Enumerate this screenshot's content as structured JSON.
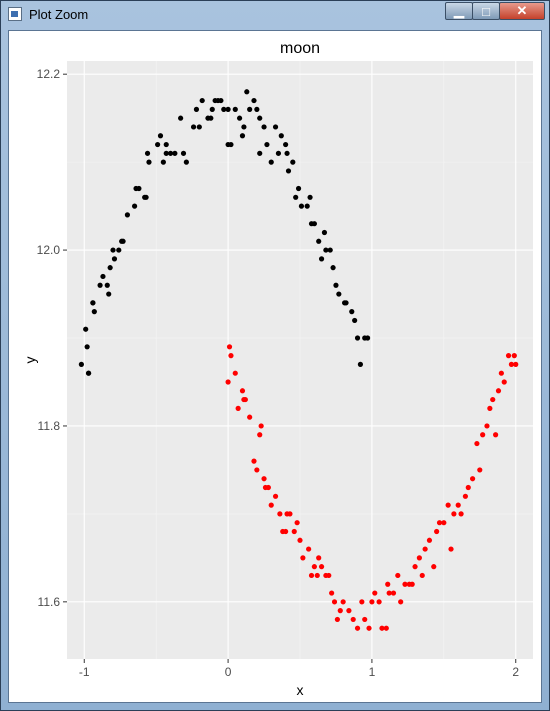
{
  "window": {
    "title": "Plot Zoom",
    "minimize_symbol": "▁",
    "maximize_symbol": "□",
    "close_symbol": "✕"
  },
  "icons": {
    "app": "plot-window-icon"
  },
  "chart_data": {
    "type": "scatter",
    "title": "moon",
    "xlabel": "x",
    "ylabel": "y",
    "xlim": [
      -1.12,
      2.12
    ],
    "ylim": [
      11.535,
      12.215
    ],
    "xticks": [
      -1,
      0,
      1,
      2
    ],
    "xtick_labels": [
      "-1",
      "0",
      "1",
      "2"
    ],
    "yticks": [
      11.6,
      11.8,
      12.0,
      12.2
    ],
    "ytick_labels": [
      "11.6",
      "11.8",
      "12.0",
      "12.2"
    ],
    "grid": true,
    "legend": "none",
    "series": [
      {
        "color": "#000000",
        "points": [
          [
            -1.02,
            11.87
          ],
          [
            -0.99,
            11.91
          ],
          [
            -0.98,
            11.89
          ],
          [
            -0.97,
            11.86
          ],
          [
            -0.97,
            11.86
          ],
          [
            -0.94,
            11.94
          ],
          [
            -0.94,
            11.94
          ],
          [
            -0.93,
            11.93
          ],
          [
            -0.89,
            11.96
          ],
          [
            -0.87,
            11.97
          ],
          [
            -0.84,
            11.96
          ],
          [
            -0.83,
            11.95
          ],
          [
            -0.82,
            11.98
          ],
          [
            -0.8,
            12.0
          ],
          [
            -0.79,
            11.99
          ],
          [
            -0.76,
            12.0
          ],
          [
            -0.74,
            12.01
          ],
          [
            -0.73,
            12.01
          ],
          [
            -0.7,
            12.04
          ],
          [
            -0.65,
            12.05
          ],
          [
            -0.64,
            12.07
          ],
          [
            -0.62,
            12.07
          ],
          [
            -0.58,
            12.06
          ],
          [
            -0.57,
            12.06
          ],
          [
            -0.56,
            12.11
          ],
          [
            -0.55,
            12.1
          ],
          [
            -0.49,
            12.12
          ],
          [
            -0.47,
            12.13
          ],
          [
            -0.45,
            12.1
          ],
          [
            -0.43,
            12.11
          ],
          [
            -0.43,
            12.12
          ],
          [
            -0.4,
            12.11
          ],
          [
            -0.37,
            12.11
          ],
          [
            -0.33,
            12.15
          ],
          [
            -0.31,
            12.11
          ],
          [
            -0.29,
            12.1
          ],
          [
            -0.24,
            12.14
          ],
          [
            -0.22,
            12.16
          ],
          [
            -0.2,
            12.14
          ],
          [
            -0.18,
            12.17
          ],
          [
            -0.14,
            12.15
          ],
          [
            -0.12,
            12.15
          ],
          [
            -0.11,
            12.16
          ],
          [
            -0.09,
            12.17
          ],
          [
            -0.07,
            12.17
          ],
          [
            -0.05,
            12.17
          ],
          [
            -0.03,
            12.16
          ],
          [
            0.0,
            12.16
          ],
          [
            0.0,
            12.12
          ],
          [
            0.02,
            12.12
          ],
          [
            0.05,
            12.16
          ],
          [
            0.08,
            12.15
          ],
          [
            0.1,
            12.13
          ],
          [
            0.11,
            12.14
          ],
          [
            0.13,
            12.18
          ],
          [
            0.15,
            12.16
          ],
          [
            0.18,
            12.17
          ],
          [
            0.2,
            12.16
          ],
          [
            0.22,
            12.15
          ],
          [
            0.22,
            12.11
          ],
          [
            0.25,
            12.14
          ],
          [
            0.27,
            12.12
          ],
          [
            0.3,
            12.1
          ],
          [
            0.33,
            12.14
          ],
          [
            0.35,
            12.11
          ],
          [
            0.37,
            12.13
          ],
          [
            0.4,
            12.12
          ],
          [
            0.41,
            12.11
          ],
          [
            0.42,
            12.09
          ],
          [
            0.45,
            12.1
          ],
          [
            0.47,
            12.06
          ],
          [
            0.49,
            12.07
          ],
          [
            0.51,
            12.05
          ],
          [
            0.55,
            12.05
          ],
          [
            0.57,
            12.06
          ],
          [
            0.58,
            12.03
          ],
          [
            0.6,
            12.03
          ],
          [
            0.63,
            12.01
          ],
          [
            0.65,
            11.99
          ],
          [
            0.67,
            12.02
          ],
          [
            0.68,
            12.0
          ],
          [
            0.71,
            12.0
          ],
          [
            0.73,
            11.98
          ],
          [
            0.75,
            11.96
          ],
          [
            0.77,
            11.95
          ],
          [
            0.81,
            11.94
          ],
          [
            0.82,
            11.94
          ],
          [
            0.86,
            11.93
          ],
          [
            0.88,
            11.92
          ],
          [
            0.9,
            11.9
          ],
          [
            0.92,
            11.87
          ],
          [
            0.95,
            11.9
          ],
          [
            0.97,
            11.9
          ]
        ]
      },
      {
        "color": "#ff0000",
        "points": [
          [
            0.0,
            11.85
          ],
          [
            0.01,
            11.89
          ],
          [
            0.02,
            11.88
          ],
          [
            0.05,
            11.86
          ],
          [
            0.07,
            11.82
          ],
          [
            0.1,
            11.84
          ],
          [
            0.11,
            11.83
          ],
          [
            0.12,
            11.83
          ],
          [
            0.15,
            11.81
          ],
          [
            0.18,
            11.76
          ],
          [
            0.2,
            11.75
          ],
          [
            0.22,
            11.79
          ],
          [
            0.23,
            11.8
          ],
          [
            0.25,
            11.74
          ],
          [
            0.26,
            11.73
          ],
          [
            0.28,
            11.73
          ],
          [
            0.3,
            11.71
          ],
          [
            0.33,
            11.72
          ],
          [
            0.36,
            11.7
          ],
          [
            0.38,
            11.68
          ],
          [
            0.4,
            11.68
          ],
          [
            0.41,
            11.7
          ],
          [
            0.43,
            11.7
          ],
          [
            0.46,
            11.68
          ],
          [
            0.48,
            11.69
          ],
          [
            0.5,
            11.67
          ],
          [
            0.52,
            11.65
          ],
          [
            0.56,
            11.66
          ],
          [
            0.58,
            11.63
          ],
          [
            0.6,
            11.64
          ],
          [
            0.62,
            11.63
          ],
          [
            0.63,
            11.65
          ],
          [
            0.65,
            11.64
          ],
          [
            0.68,
            11.63
          ],
          [
            0.7,
            11.63
          ],
          [
            0.72,
            11.61
          ],
          [
            0.74,
            11.6
          ],
          [
            0.76,
            11.58
          ],
          [
            0.78,
            11.59
          ],
          [
            0.8,
            11.6
          ],
          [
            0.84,
            11.59
          ],
          [
            0.87,
            11.58
          ],
          [
            0.9,
            11.57
          ],
          [
            0.93,
            11.6
          ],
          [
            0.95,
            11.58
          ],
          [
            0.98,
            11.57
          ],
          [
            1.0,
            11.6
          ],
          [
            1.02,
            11.61
          ],
          [
            1.05,
            11.6
          ],
          [
            1.07,
            11.57
          ],
          [
            1.1,
            11.57
          ],
          [
            1.11,
            11.62
          ],
          [
            1.12,
            11.61
          ],
          [
            1.15,
            11.61
          ],
          [
            1.18,
            11.63
          ],
          [
            1.2,
            11.6
          ],
          [
            1.23,
            11.62
          ],
          [
            1.26,
            11.62
          ],
          [
            1.28,
            11.62
          ],
          [
            1.3,
            11.64
          ],
          [
            1.33,
            11.65
          ],
          [
            1.35,
            11.63
          ],
          [
            1.37,
            11.66
          ],
          [
            1.4,
            11.67
          ],
          [
            1.43,
            11.64
          ],
          [
            1.45,
            11.68
          ],
          [
            1.47,
            11.69
          ],
          [
            1.5,
            11.69
          ],
          [
            1.53,
            11.71
          ],
          [
            1.55,
            11.66
          ],
          [
            1.57,
            11.7
          ],
          [
            1.6,
            11.71
          ],
          [
            1.62,
            11.7
          ],
          [
            1.65,
            11.72
          ],
          [
            1.67,
            11.73
          ],
          [
            1.7,
            11.74
          ],
          [
            1.73,
            11.78
          ],
          [
            1.75,
            11.75
          ],
          [
            1.77,
            11.79
          ],
          [
            1.8,
            11.8
          ],
          [
            1.82,
            11.82
          ],
          [
            1.84,
            11.83
          ],
          [
            1.86,
            11.79
          ],
          [
            1.88,
            11.84
          ],
          [
            1.9,
            11.86
          ],
          [
            1.92,
            11.85
          ],
          [
            1.95,
            11.88
          ],
          [
            1.97,
            11.87
          ],
          [
            1.99,
            11.88
          ],
          [
            2.0,
            11.87
          ]
        ]
      }
    ]
  }
}
